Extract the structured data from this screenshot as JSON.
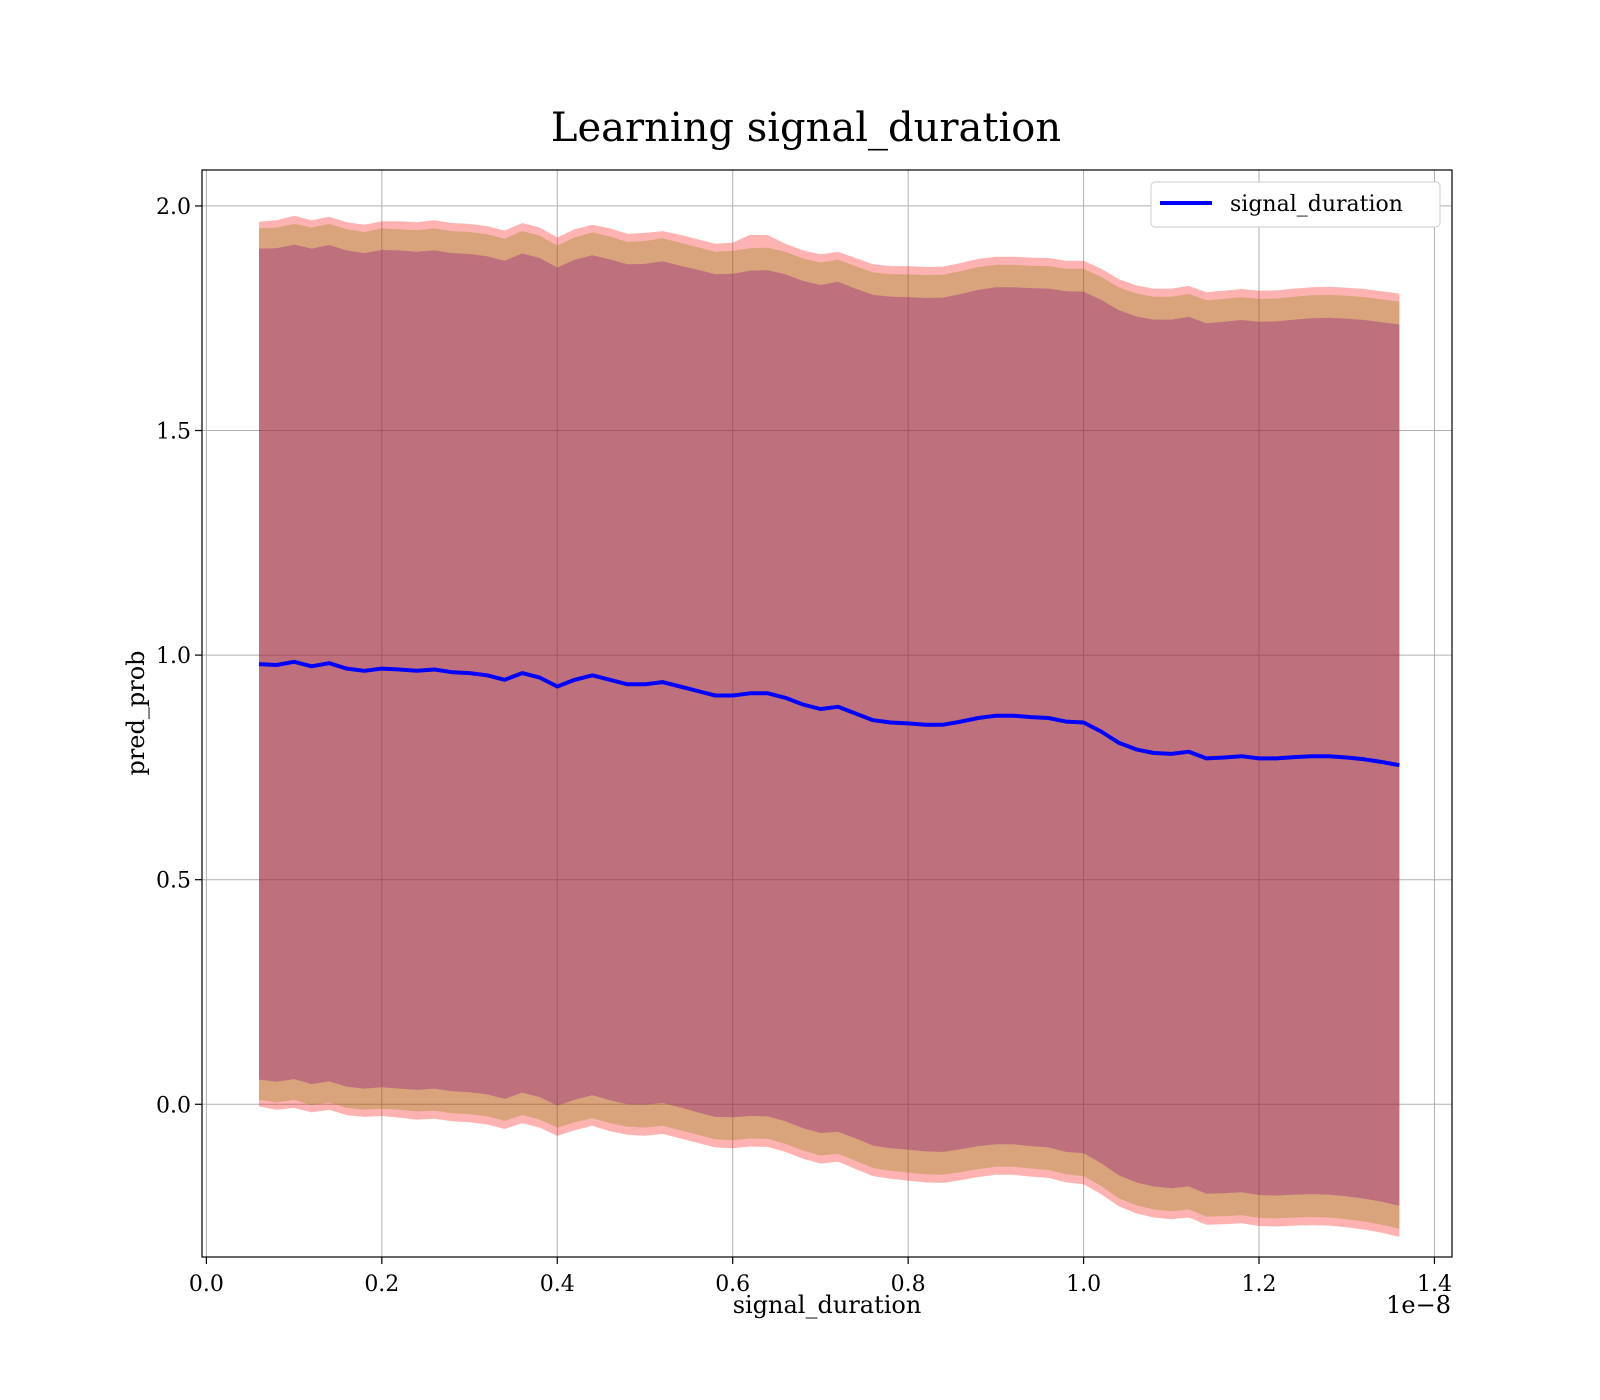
{
  "chart_data": {
    "type": "line",
    "title": "Learning signal_duration",
    "xlabel": "signal_duration",
    "ylabel": "pred_prob",
    "x_offset_label": "1e−8",
    "xlim": [
      -0.005,
      1.42
    ],
    "ylim": [
      -0.34,
      2.08
    ],
    "grid": true,
    "legend_position": "top-right",
    "xticks": [
      0.0,
      0.2,
      0.4,
      0.6,
      0.8,
      1.0,
      1.2,
      1.4
    ],
    "xtick_labels": [
      "0.0",
      "0.2",
      "0.4",
      "0.6",
      "0.8",
      "1.0",
      "1.2",
      "1.4"
    ],
    "yticks": [
      0.0,
      0.5,
      1.0,
      1.5,
      2.0
    ],
    "ytick_labels": [
      "0.0",
      "0.5",
      "1.0",
      "1.5",
      "2.0"
    ],
    "x": [
      0.06,
      0.08,
      0.1,
      0.12,
      0.14,
      0.16,
      0.18,
      0.2,
      0.22,
      0.24,
      0.26,
      0.28,
      0.3,
      0.32,
      0.34,
      0.36,
      0.38,
      0.4,
      0.42,
      0.44,
      0.46,
      0.48,
      0.5,
      0.52,
      0.54,
      0.56,
      0.58,
      0.6,
      0.62,
      0.64,
      0.66,
      0.68,
      0.7,
      0.72,
      0.74,
      0.76,
      0.78,
      0.8,
      0.82,
      0.84,
      0.86,
      0.88,
      0.9,
      0.92,
      0.94,
      0.96,
      0.98,
      1.0,
      1.02,
      1.04,
      1.06,
      1.08,
      1.1,
      1.12,
      1.14,
      1.16,
      1.18,
      1.2,
      1.22,
      1.24,
      1.26,
      1.28,
      1.3,
      1.32,
      1.34,
      1.36
    ],
    "series": [
      {
        "name": "signal_duration",
        "color": "#0000ff",
        "values": [
          0.98,
          0.978,
          0.985,
          0.975,
          0.982,
          0.97,
          0.965,
          0.97,
          0.968,
          0.965,
          0.968,
          0.962,
          0.96,
          0.955,
          0.945,
          0.96,
          0.95,
          0.93,
          0.945,
          0.955,
          0.945,
          0.935,
          0.935,
          0.94,
          0.93,
          0.92,
          0.91,
          0.91,
          0.915,
          0.915,
          0.905,
          0.89,
          0.88,
          0.885,
          0.87,
          0.855,
          0.85,
          0.848,
          0.845,
          0.845,
          0.852,
          0.86,
          0.865,
          0.865,
          0.862,
          0.86,
          0.852,
          0.85,
          0.83,
          0.805,
          0.79,
          0.782,
          0.78,
          0.785,
          0.77,
          0.772,
          0.775,
          0.77,
          0.77,
          0.773,
          0.775,
          0.775,
          0.772,
          0.768,
          0.762,
          0.755
        ]
      }
    ],
    "bands": [
      {
        "name": "outer",
        "color": "#ff0000",
        "opacity": 0.3,
        "lower": [
          -0.005,
          -0.012,
          -0.008,
          -0.018,
          -0.012,
          -0.024,
          -0.028,
          -0.026,
          -0.03,
          -0.034,
          -0.032,
          -0.038,
          -0.04,
          -0.045,
          -0.055,
          -0.042,
          -0.052,
          -0.07,
          -0.058,
          -0.048,
          -0.06,
          -0.068,
          -0.07,
          -0.066,
          -0.076,
          -0.086,
          -0.096,
          -0.098,
          -0.094,
          -0.095,
          -0.106,
          -0.121,
          -0.132,
          -0.128,
          -0.144,
          -0.16,
          -0.166,
          -0.17,
          -0.174,
          -0.175,
          -0.169,
          -0.162,
          -0.157,
          -0.157,
          -0.161,
          -0.164,
          -0.174,
          -0.178,
          -0.2,
          -0.227,
          -0.243,
          -0.252,
          -0.256,
          -0.252,
          -0.268,
          -0.267,
          -0.265,
          -0.271,
          -0.272,
          -0.27,
          -0.269,
          -0.27,
          -0.274,
          -0.279,
          -0.286,
          -0.295
        ],
        "upper": [
          1.965,
          1.968,
          1.978,
          1.968,
          1.976,
          1.964,
          1.958,
          1.966,
          1.966,
          1.964,
          1.968,
          1.962,
          1.96,
          1.955,
          1.945,
          1.962,
          1.952,
          1.93,
          1.948,
          1.958,
          1.95,
          1.938,
          1.94,
          1.944,
          1.936,
          1.926,
          1.916,
          1.918,
          1.936,
          1.935,
          1.916,
          1.901,
          1.892,
          1.898,
          1.884,
          1.87,
          1.866,
          1.866,
          1.864,
          1.865,
          1.873,
          1.882,
          1.887,
          1.887,
          1.885,
          1.884,
          1.878,
          1.878,
          1.86,
          1.837,
          1.823,
          1.816,
          1.816,
          1.822,
          1.808,
          1.811,
          1.815,
          1.811,
          1.812,
          1.816,
          1.819,
          1.82,
          1.818,
          1.815,
          1.81,
          1.805
        ]
      },
      {
        "name": "middle",
        "color": "#808000",
        "opacity": 0.3,
        "lower": [
          0.01,
          0.004,
          0.01,
          -0.002,
          0.004,
          -0.008,
          -0.012,
          -0.01,
          -0.012,
          -0.016,
          -0.014,
          -0.02,
          -0.022,
          -0.027,
          -0.037,
          -0.024,
          -0.034,
          -0.052,
          -0.04,
          -0.031,
          -0.042,
          -0.05,
          -0.052,
          -0.048,
          -0.058,
          -0.068,
          -0.078,
          -0.08,
          -0.076,
          -0.077,
          -0.088,
          -0.103,
          -0.114,
          -0.11,
          -0.126,
          -0.142,
          -0.148,
          -0.152,
          -0.156,
          -0.157,
          -0.151,
          -0.144,
          -0.139,
          -0.139,
          -0.143,
          -0.146,
          -0.156,
          -0.16,
          -0.182,
          -0.209,
          -0.225,
          -0.234,
          -0.238,
          -0.234,
          -0.25,
          -0.249,
          -0.247,
          -0.253,
          -0.254,
          -0.252,
          -0.251,
          -0.252,
          -0.256,
          -0.261,
          -0.268,
          -0.277
        ],
        "upper": [
          1.95,
          1.952,
          1.96,
          1.952,
          1.96,
          1.948,
          1.942,
          1.95,
          1.948,
          1.946,
          1.95,
          1.944,
          1.942,
          1.937,
          1.927,
          1.944,
          1.934,
          1.912,
          1.93,
          1.941,
          1.932,
          1.92,
          1.922,
          1.928,
          1.918,
          1.908,
          1.898,
          1.9,
          1.906,
          1.907,
          1.898,
          1.883,
          1.874,
          1.88,
          1.866,
          1.852,
          1.848,
          1.848,
          1.846,
          1.847,
          1.855,
          1.864,
          1.869,
          1.869,
          1.867,
          1.866,
          1.86,
          1.86,
          1.842,
          1.819,
          1.805,
          1.798,
          1.798,
          1.804,
          1.79,
          1.793,
          1.797,
          1.793,
          1.794,
          1.798,
          1.801,
          1.802,
          1.8,
          1.797,
          1.792,
          1.787
        ]
      },
      {
        "name": "inner",
        "color": "#800080",
        "opacity": 0.3,
        "lower": [
          0.055,
          0.05,
          0.056,
          0.045,
          0.051,
          0.039,
          0.035,
          0.038,
          0.035,
          0.032,
          0.035,
          0.029,
          0.027,
          0.022,
          0.012,
          0.026,
          0.016,
          -0.003,
          0.01,
          0.02,
          0.009,
          0.0,
          -0.001,
          0.003,
          -0.007,
          -0.018,
          -0.028,
          -0.029,
          -0.026,
          -0.027,
          -0.038,
          -0.053,
          -0.064,
          -0.061,
          -0.076,
          -0.092,
          -0.098,
          -0.101,
          -0.105,
          -0.106,
          -0.1,
          -0.093,
          -0.089,
          -0.089,
          -0.093,
          -0.096,
          -0.106,
          -0.109,
          -0.131,
          -0.158,
          -0.174,
          -0.183,
          -0.187,
          -0.183,
          -0.199,
          -0.198,
          -0.196,
          -0.202,
          -0.203,
          -0.201,
          -0.2,
          -0.201,
          -0.205,
          -0.21,
          -0.217,
          -0.226
        ],
        "upper": [
          1.905,
          1.906,
          1.914,
          1.905,
          1.913,
          1.901,
          1.895,
          1.902,
          1.901,
          1.898,
          1.901,
          1.895,
          1.893,
          1.888,
          1.878,
          1.894,
          1.884,
          1.863,
          1.88,
          1.89,
          1.881,
          1.87,
          1.871,
          1.877,
          1.867,
          1.858,
          1.848,
          1.849,
          1.856,
          1.857,
          1.848,
          1.833,
          1.824,
          1.831,
          1.816,
          1.802,
          1.798,
          1.797,
          1.795,
          1.796,
          1.804,
          1.813,
          1.819,
          1.819,
          1.817,
          1.816,
          1.81,
          1.809,
          1.791,
          1.768,
          1.754,
          1.747,
          1.747,
          1.753,
          1.739,
          1.742,
          1.746,
          1.742,
          1.743,
          1.747,
          1.75,
          1.751,
          1.749,
          1.746,
          1.741,
          1.736
        ]
      }
    ]
  }
}
